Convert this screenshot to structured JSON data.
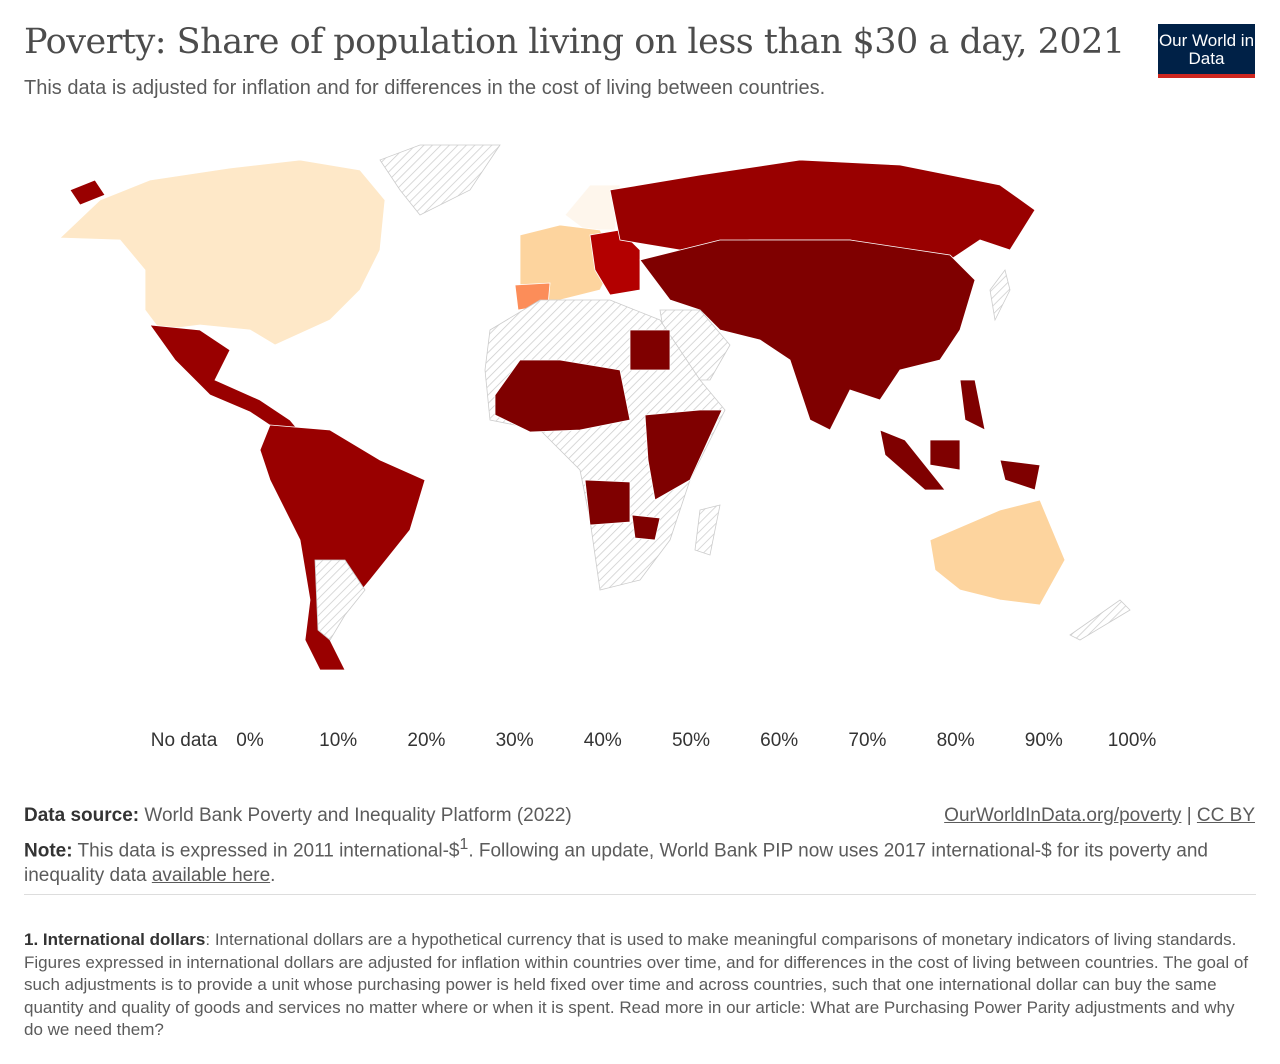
{
  "header": {
    "title": "Poverty: Share of population living on less than $30 a day, 2021",
    "subtitle": "This data is adjusted for inflation and for differences in the cost of living between countries.",
    "logo": "Our World in Data"
  },
  "chart_data": {
    "type": "choropleth map",
    "title": "Poverty: Share of population living on less than $30 a day, 2021",
    "legend": {
      "no_data_label": "No data",
      "bins": [
        "0%",
        "10%",
        "20%",
        "30%",
        "40%",
        "50%",
        "60%",
        "70%",
        "80%",
        "90%",
        "100%"
      ],
      "colors": [
        "#fef6ec",
        "#fee8c8",
        "#fdd49e",
        "#fdbb84",
        "#fc8d59",
        "#ef6548",
        "#d7301f",
        "#b30000",
        "#990000",
        "#7f0000"
      ]
    },
    "regions_approx": [
      {
        "region": "North America (USA, Canada)",
        "bin": "10-20%"
      },
      {
        "region": "Western Europe",
        "bin": "20-40%"
      },
      {
        "region": "Spain",
        "bin": "40-50%"
      },
      {
        "region": "Russia",
        "bin": "80-90%"
      },
      {
        "region": "China / India / Central Asia",
        "bin": "90-100%"
      },
      {
        "region": "Latin America",
        "bin": "80-100%"
      },
      {
        "region": "Sub-Saharan Africa (reported)",
        "bin": "90-100%"
      },
      {
        "region": "Australia",
        "bin": "20-30%"
      },
      {
        "region": "Greenland, Middle East, much of Africa",
        "bin": "No data"
      }
    ]
  },
  "footer": {
    "source_label": "Data source:",
    "source": "World Bank Poverty and Inequality Platform (2022)",
    "link1": "OurWorldInData.org/poverty",
    "sep": "|",
    "link2": "CC BY",
    "note_label": "Note:",
    "note_a": "This data is expressed in 2011 international-$",
    "note_sup": "1",
    "note_b": ". Following an update, World Bank PIP now uses 2017 international-$ for its poverty and inequality data ",
    "note_link": "available here",
    "note_end": ".",
    "fn_label": "1. International dollars",
    "fn_text": ": International dollars are a hypothetical currency that is used to make meaningful comparisons of monetary indicators of living standards. Figures expressed in international dollars are adjusted for inflation within countries over time, and for differences in the cost of living between countries. The goal of such adjustments is to provide a unit whose purchasing power is held fixed over time and across countries, such that one international dollar can buy the same quantity and quality of goods and services no matter where or when it is spent. Read more in our article: What are Purchasing Power Parity adjustments and why do we need them?"
  }
}
